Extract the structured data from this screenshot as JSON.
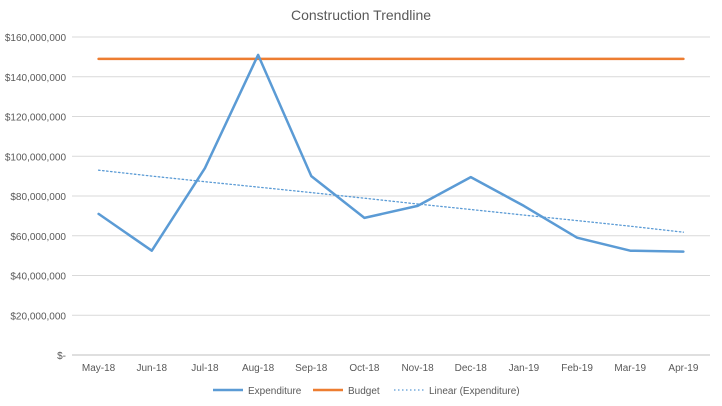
{
  "chart_data": {
    "type": "line",
    "title": "Construction Trendline",
    "categories": [
      "May-18",
      "Jun-18",
      "Jul-18",
      "Aug-18",
      "Sep-18",
      "Oct-18",
      "Nov-18",
      "Dec-18",
      "Jan-19",
      "Feb-19",
      "Mar-19",
      "Apr-19"
    ],
    "y_tick_labels": [
      "$-",
      "$20,000,000",
      "$40,000,000",
      "$60,000,000",
      "$80,000,000",
      "$100,000,000",
      "$120,000,000",
      "$140,000,000",
      "$160,000,000"
    ],
    "ylim": [
      0,
      160000000
    ],
    "grid": true,
    "legend_position": "bottom",
    "series": [
      {
        "name": "Expenditure",
        "color": "#5B9BD5",
        "style": "solid",
        "values": [
          71000000,
          52500000,
          94000000,
          151000000,
          90000000,
          69000000,
          75000000,
          89500000,
          75000000,
          59000000,
          52500000,
          52000000
        ]
      },
      {
        "name": "Budget",
        "color": "#ED7D31",
        "style": "solid",
        "values": [
          149000000,
          149000000,
          149000000,
          149000000,
          149000000,
          149000000,
          149000000,
          149000000,
          149000000,
          149000000,
          149000000,
          149000000
        ]
      },
      {
        "name": "Linear (Expenditure)",
        "color": "#5B9BD5",
        "style": "dotted",
        "values": [
          93000000,
          90000000,
          87200000,
          84500000,
          81700000,
          78900000,
          76000000,
          73200000,
          70400000,
          67600000,
          64800000,
          61800000
        ]
      }
    ]
  }
}
